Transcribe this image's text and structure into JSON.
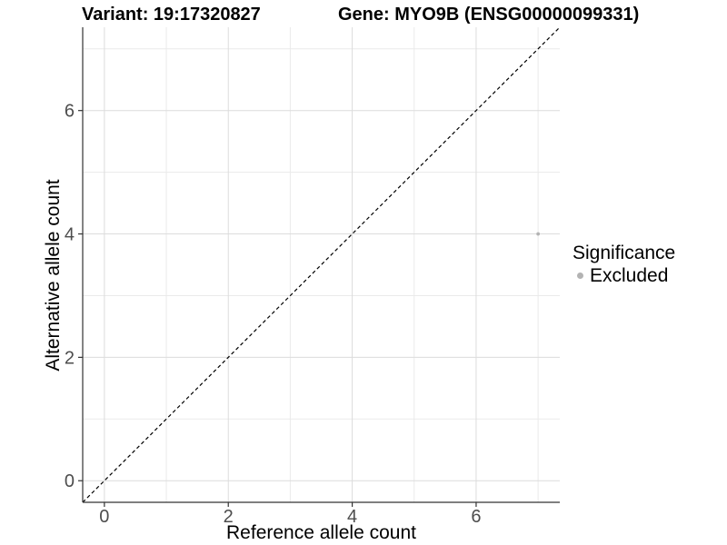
{
  "figure": {
    "title_left": "Variant: 19:17320827",
    "title_right": "Gene: MYO9B (ENSG00000099331)"
  },
  "chart_data": {
    "type": "scatter",
    "title": "Variant: 19:17320827  /  Gene: MYO9B (ENSG00000099331)",
    "xlabel": "Reference allele count",
    "ylabel": "Alternative allele count",
    "xlim": [
      -0.35,
      7.35
    ],
    "ylim": [
      -0.35,
      7.35
    ],
    "x_ticks": [
      0,
      2,
      4,
      6
    ],
    "y_ticks": [
      0,
      2,
      4,
      6
    ],
    "x_minor_ticks": [
      1,
      3,
      5,
      7
    ],
    "y_minor_ticks": [
      1,
      3,
      5,
      7
    ],
    "grid": "major and minor, light gray on white",
    "reference_line": {
      "kind": "identity y=x",
      "style": "dashed",
      "color": "#000000"
    },
    "series": [
      {
        "name": "Excluded",
        "color": "#b3b3b3",
        "points": [
          {
            "x": 7,
            "y": 4
          }
        ]
      }
    ],
    "legend": {
      "position": "right",
      "title": "Significance",
      "items": [
        {
          "label": "Excluded",
          "color": "#b3b3b3"
        }
      ]
    },
    "style": {
      "grid_major_color": "#dcdcdc",
      "grid_minor_color": "#eaeaea",
      "axis_line_color": "#333333",
      "tick_label_color": "#4d4d4d",
      "point_color": "#b3b3b3"
    }
  }
}
